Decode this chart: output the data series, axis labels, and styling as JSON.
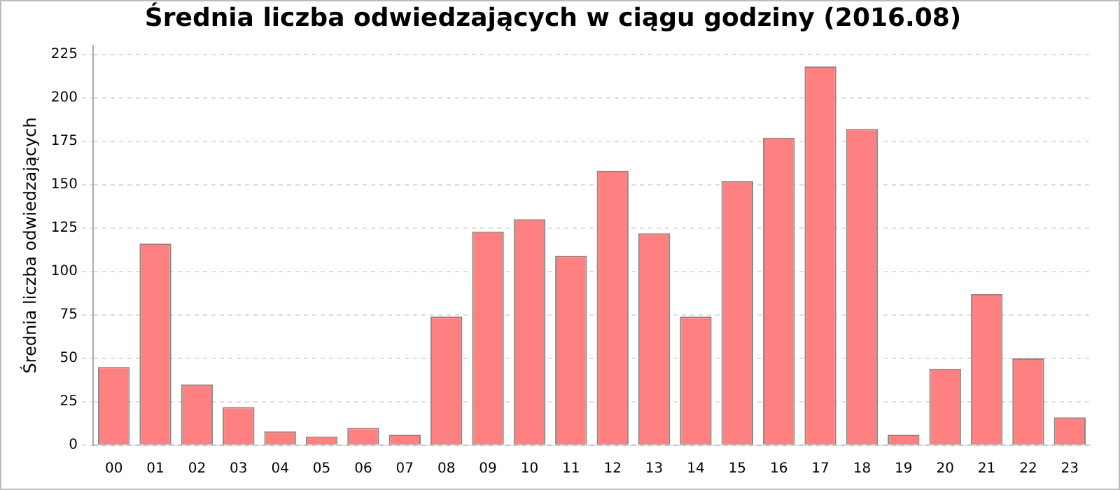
{
  "chart_data": {
    "type": "bar",
    "title": "Średnia liczba odwiedzających w ciągu godziny (2016.08)",
    "ylabel": "Średnia liczba odwiedzających",
    "categories": [
      "00",
      "01",
      "02",
      "03",
      "04",
      "05",
      "06",
      "07",
      "08",
      "09",
      "10",
      "11",
      "12",
      "13",
      "14",
      "15",
      "16",
      "17",
      "18",
      "19",
      "20",
      "21",
      "22",
      "23"
    ],
    "values": [
      45,
      116,
      35,
      22,
      8,
      5,
      10,
      6,
      74,
      123,
      130,
      109,
      158,
      122,
      74,
      152,
      177,
      218,
      182,
      6,
      44,
      87,
      50,
      16
    ],
    "color": "#ff8080",
    "ylim": [
      0,
      230
    ],
    "yticks": [
      0,
      25,
      50,
      75,
      100,
      125,
      150,
      175,
      200,
      225
    ],
    "grid": "y",
    "legend": false
  }
}
